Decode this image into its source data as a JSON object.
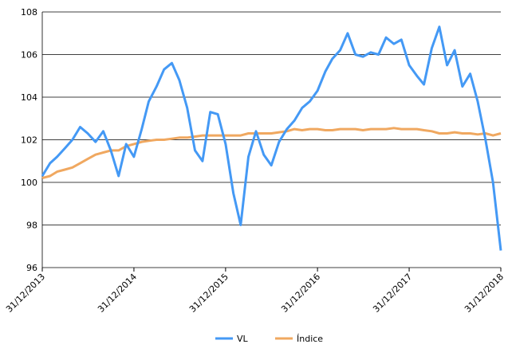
{
  "chart_data": {
    "type": "line",
    "x": [
      "2013-12-31",
      "2014-01-31",
      "2014-02-28",
      "2014-03-31",
      "2014-04-30",
      "2014-05-31",
      "2014-06-30",
      "2014-07-31",
      "2014-08-31",
      "2014-09-30",
      "2014-10-31",
      "2014-11-30",
      "2014-12-31",
      "2015-01-31",
      "2015-02-28",
      "2015-03-31",
      "2015-04-30",
      "2015-05-31",
      "2015-06-30",
      "2015-07-31",
      "2015-08-31",
      "2015-09-30",
      "2015-10-31",
      "2015-11-30",
      "2015-12-31",
      "2016-01-31",
      "2016-02-29",
      "2016-03-31",
      "2016-04-30",
      "2016-05-31",
      "2016-06-30",
      "2016-07-31",
      "2016-08-31",
      "2016-09-30",
      "2016-10-31",
      "2016-11-30",
      "2016-12-31",
      "2017-01-31",
      "2017-02-28",
      "2017-03-31",
      "2017-04-30",
      "2017-05-31",
      "2017-06-30",
      "2017-07-31",
      "2017-08-31",
      "2017-09-30",
      "2017-10-31",
      "2017-11-30",
      "2017-12-31",
      "2018-01-31",
      "2018-02-28",
      "2018-03-31",
      "2018-04-30",
      "2018-05-31",
      "2018-06-30",
      "2018-07-31",
      "2018-08-31",
      "2018-09-30",
      "2018-10-31",
      "2018-11-30",
      "2018-12-31"
    ],
    "series": [
      {
        "name": "VL",
        "color": "#4499f5",
        "values": [
          100.3,
          100.9,
          101.2,
          101.6,
          102.0,
          102.6,
          102.3,
          101.9,
          102.4,
          101.5,
          100.3,
          101.8,
          101.2,
          102.5,
          103.8,
          104.5,
          105.3,
          105.6,
          104.8,
          103.5,
          101.5,
          101.0,
          103.3,
          103.2,
          101.8,
          99.5,
          98.0,
          101.2,
          102.4,
          101.3,
          100.8,
          101.9,
          102.5,
          102.9,
          103.5,
          103.8,
          104.3,
          105.2,
          105.8,
          106.2,
          107.0,
          106.0,
          105.9,
          106.1,
          106.0,
          106.8,
          106.5,
          106.7,
          105.5,
          105.0,
          104.6,
          106.3,
          107.3,
          105.5,
          106.2,
          104.5,
          105.1,
          103.8,
          102.0,
          100.0,
          96.8
        ]
      },
      {
        "name": "Índice",
        "color": "#f0a860",
        "values": [
          100.2,
          100.3,
          100.5,
          100.6,
          100.7,
          100.9,
          101.1,
          101.3,
          101.4,
          101.5,
          101.5,
          101.7,
          101.8,
          101.9,
          101.95,
          102.0,
          102.0,
          102.05,
          102.1,
          102.1,
          102.15,
          102.2,
          102.2,
          102.2,
          102.2,
          102.2,
          102.2,
          102.3,
          102.3,
          102.3,
          102.3,
          102.35,
          102.4,
          102.5,
          102.45,
          102.5,
          102.5,
          102.45,
          102.45,
          102.5,
          102.5,
          102.5,
          102.45,
          102.5,
          102.5,
          102.5,
          102.55,
          102.5,
          102.5,
          102.5,
          102.45,
          102.4,
          102.3,
          102.3,
          102.35,
          102.3,
          102.3,
          102.25,
          102.3,
          102.2,
          102.3
        ]
      }
    ],
    "xlim": [
      "2013-12-31",
      "2018-12-31"
    ],
    "xticks": [
      {
        "value": "2013-12-31",
        "label": "31/12/2013"
      },
      {
        "value": "2014-12-31",
        "label": "31/12/2014"
      },
      {
        "value": "2015-12-31",
        "label": "31/12/2015"
      },
      {
        "value": "2016-12-31",
        "label": "31/12/2016"
      },
      {
        "value": "2017-12-31",
        "label": "31/12/2017"
      },
      {
        "value": "2018-12-31",
        "label": "31/12/2018"
      }
    ],
    "ylim": [
      96,
      108
    ],
    "yticks": [
      96,
      98,
      100,
      102,
      104,
      106,
      108
    ],
    "grid": true,
    "legend": "bottom"
  }
}
